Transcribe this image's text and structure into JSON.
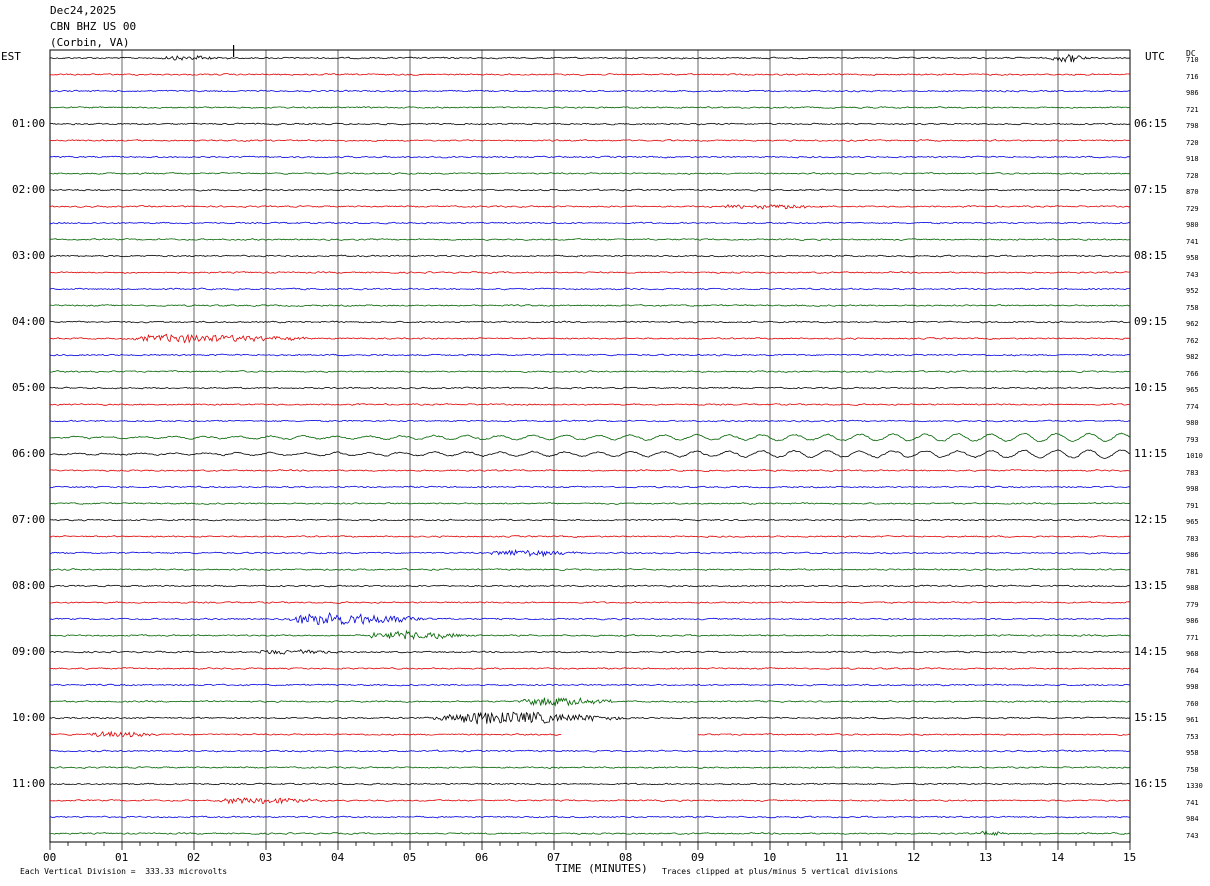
{
  "header": {
    "date": "Dec24,2025",
    "station": "CBN BHZ US 00",
    "location": "(Corbin, VA)"
  },
  "left_timezone": "EST",
  "right_timezone": "UTC",
  "dc_label": "DC",
  "footer": {
    "scale": "Each Vertical Division =  333.33 microvolts",
    "xlabel": "TIME (MINUTES)",
    "clip": "Traces clipped at plus/minus 5 vertical divisions"
  },
  "chart_data": {
    "type": "line",
    "title": "",
    "xlabel": "TIME (MINUTES)",
    "xlim": [
      0,
      15
    ],
    "x_ticks": [
      "00",
      "01",
      "02",
      "03",
      "04",
      "05",
      "06",
      "07",
      "08",
      "09",
      "10",
      "11",
      "12",
      "13",
      "14",
      "15"
    ],
    "row_count": 48,
    "trace_colors": [
      "#000000",
      "#e00000",
      "#0000e0",
      "#006400"
    ],
    "left_hour_labels": [
      "01:00",
      "02:00",
      "03:00",
      "04:00",
      "05:00",
      "06:00",
      "07:00",
      "08:00",
      "09:00",
      "10:00",
      "11:00"
    ],
    "right_hour_labels": [
      "06:15",
      "07:15",
      "08:15",
      "09:15",
      "10:15",
      "11:15",
      "12:15",
      "13:15",
      "14:15",
      "15:15",
      "16:15"
    ],
    "dc_offsets": [
      710,
      716,
      986,
      721,
      798,
      720,
      918,
      728,
      870,
      729,
      980,
      741,
      958,
      743,
      952,
      758,
      962,
      762,
      982,
      766,
      965,
      774,
      980,
      793,
      1010,
      783,
      998,
      791,
      965,
      783,
      986,
      781,
      988,
      779,
      986,
      771,
      968,
      764,
      998,
      760,
      961,
      753,
      958,
      758,
      1330,
      741,
      984,
      743
    ],
    "events": [
      {
        "row": 0,
        "start_min": 1.5,
        "end_min": 2.6,
        "amp": 2.0
      },
      {
        "row": 0,
        "start_min": 13.9,
        "end_min": 14.5,
        "amp": 4.0
      },
      {
        "row": 9,
        "start_min": 9.2,
        "end_min": 11.2,
        "amp": 2.0
      },
      {
        "row": 17,
        "start_min": 1.1,
        "end_min": 3.8,
        "amp": 4.0
      },
      {
        "row": 30,
        "start_min": 6.1,
        "end_min": 7.5,
        "amp": 3.0
      },
      {
        "row": 34,
        "start_min": 3.3,
        "end_min": 5.4,
        "amp": 6.0
      },
      {
        "row": 35,
        "start_min": 4.4,
        "end_min": 6.0,
        "amp": 4.0
      },
      {
        "row": 36,
        "start_min": 2.8,
        "end_min": 4.2,
        "amp": 2.5
      },
      {
        "row": 39,
        "start_min": 6.5,
        "end_min": 8.0,
        "amp": 4.0
      },
      {
        "row": 40,
        "start_min": 5.3,
        "end_min": 8.2,
        "amp": 6.0
      },
      {
        "row": 41,
        "start_min": 0.5,
        "end_min": 1.6,
        "amp": 2.5
      },
      {
        "row": 45,
        "start_min": 2.3,
        "end_min": 4.0,
        "amp": 3.0
      },
      {
        "row": 47,
        "start_min": 12.9,
        "end_min": 13.3,
        "amp": 2.5
      }
    ],
    "long_period_rows": [
      23,
      24
    ],
    "gaps": [
      {
        "row": 41,
        "start_min": 7.1,
        "end_min": 9.0
      }
    ]
  }
}
